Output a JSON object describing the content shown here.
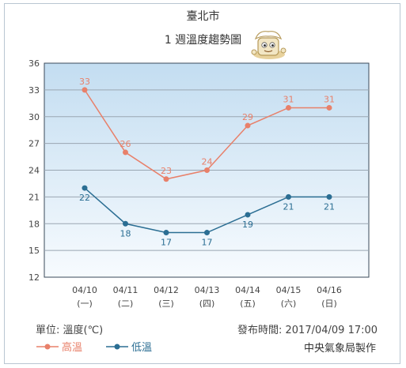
{
  "chart_data": {
    "type": "line",
    "title": "臺北市",
    "subtitle": "1 週溫度趨勢圖",
    "categories": [
      "04/10",
      "04/11",
      "04/12",
      "04/13",
      "04/14",
      "04/15",
      "04/16"
    ],
    "weekdays": [
      "(一)",
      "(二)",
      "(三)",
      "(四)",
      "(五)",
      "(六)",
      "(日)"
    ],
    "series": [
      {
        "name": "高溫",
        "color": "#e8806a",
        "values": [
          33,
          26,
          23,
          24,
          29,
          31,
          31
        ]
      },
      {
        "name": "低溫",
        "color": "#2b6e93",
        "values": [
          22,
          18,
          17,
          17,
          19,
          21,
          21
        ]
      }
    ],
    "ylim": [
      12,
      36
    ],
    "yticks": [
      12,
      15,
      18,
      21,
      24,
      27,
      30,
      33,
      36
    ],
    "grid": true,
    "legend_position": "bottom-left"
  },
  "footer": {
    "unit": "單位: 溫度(℃)",
    "issued": "發布時間: 2017/04/09  17:00",
    "source": "中央氣象局製作"
  },
  "mascot_icon": "weather-mascot-icon"
}
